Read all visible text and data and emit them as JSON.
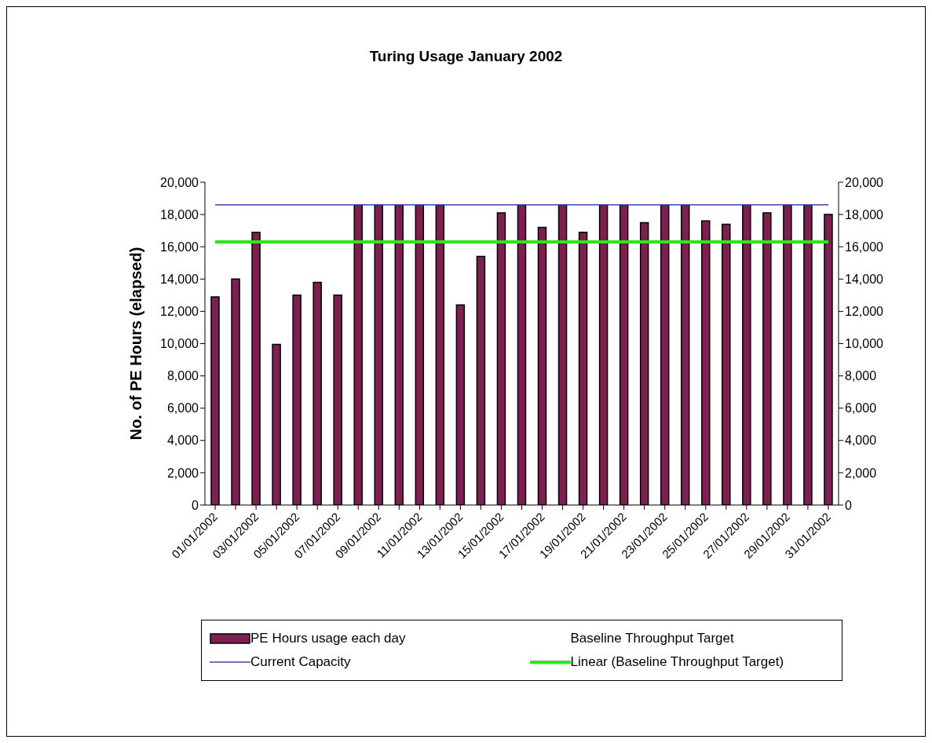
{
  "chart_data": {
    "type": "bar",
    "title": "Turing Usage January 2002",
    "ylabel": "No. of PE Hours (elapsed)",
    "categories": [
      "01/01/2002",
      null,
      "03/01/2002",
      null,
      "05/01/2002",
      null,
      "07/01/2002",
      null,
      "09/01/2002",
      null,
      "11/01/2002",
      null,
      "13/01/2002",
      null,
      "15/01/2002",
      null,
      "17/01/2002",
      null,
      "19/01/2002",
      null,
      "21/01/2002",
      null,
      "23/01/2002",
      null,
      "25/01/2002",
      null,
      "27/01/2002",
      null,
      "29/01/2002",
      null,
      "31/01/2002"
    ],
    "series": [
      {
        "name": "PE Hours usage each day",
        "color": "#7b2050",
        "values": [
          12900,
          14000,
          16900,
          9950,
          13000,
          13800,
          13000,
          18600,
          18600,
          18600,
          18600,
          18600,
          12400,
          15400,
          18100,
          18600,
          17200,
          18600,
          16900,
          18600,
          18600,
          17500,
          18600,
          18600,
          17600,
          17400,
          18600,
          18100,
          18600,
          18600,
          18000
        ]
      },
      {
        "name": "Current Capacity",
        "type": "line",
        "axis": "y2",
        "color": "#4040d0",
        "values": [
          18600,
          18600,
          18600,
          18600,
          18600,
          18600,
          18600,
          18600,
          18600,
          18600,
          18600,
          18600,
          18600,
          18600,
          18600,
          18600,
          18600,
          18600,
          18600,
          18600,
          18600,
          18600,
          18600,
          18600,
          18600,
          18600,
          18600,
          18600,
          18600,
          18600,
          18600
        ]
      },
      {
        "name": "Linear (Baseline Throughput Target)",
        "type": "line",
        "color": "#22ee11",
        "values": [
          16300,
          16300,
          16300,
          16300,
          16300,
          16300,
          16300,
          16300,
          16300,
          16300,
          16300,
          16300,
          16300,
          16300,
          16300,
          16300,
          16300,
          16300,
          16300,
          16300,
          16300,
          16300,
          16300,
          16300,
          16300,
          16300,
          16300,
          16300,
          16300,
          16300,
          16300
        ]
      }
    ],
    "annotations": [
      "Baseline Throughput Target"
    ],
    "ylim": [
      0,
      20000
    ],
    "yticks": [
      0,
      {
        "value": 2000,
        "label": "2,000"
      },
      {
        "value": 4000,
        "label": "4,000"
      },
      {
        "value": 6000,
        "label": "6,000"
      },
      {
        "value": 8000,
        "label": "8,000"
      },
      {
        "value": 10000,
        "label": "10,000"
      },
      {
        "value": 12000,
        "label": "12,000"
      },
      {
        "value": 14000,
        "label": "14,000"
      },
      {
        "value": 16000,
        "label": "16,000"
      },
      {
        "value": 18000,
        "label": "18,000"
      },
      {
        "value": 20000,
        "label": "20,000"
      }
    ],
    "y2lim": [
      0,
      20000
    ],
    "y2ticks": [
      0,
      {
        "value": 2000,
        "label": "2,000"
      },
      {
        "value": 4000,
        "label": "4,000"
      },
      {
        "value": 6000,
        "label": "6,000"
      },
      {
        "value": 8000,
        "label": "8,000"
      },
      {
        "value": 10000,
        "label": "10,000"
      },
      {
        "value": 12000,
        "label": "12,000"
      },
      {
        "value": 14000,
        "label": "14,000"
      },
      {
        "value": 16000,
        "label": "16,000"
      },
      {
        "value": 18000,
        "label": "18,000"
      },
      {
        "value": 20000,
        "label": "20,000"
      }
    ],
    "grid": false,
    "legend": "bottom",
    "marker": "none"
  }
}
